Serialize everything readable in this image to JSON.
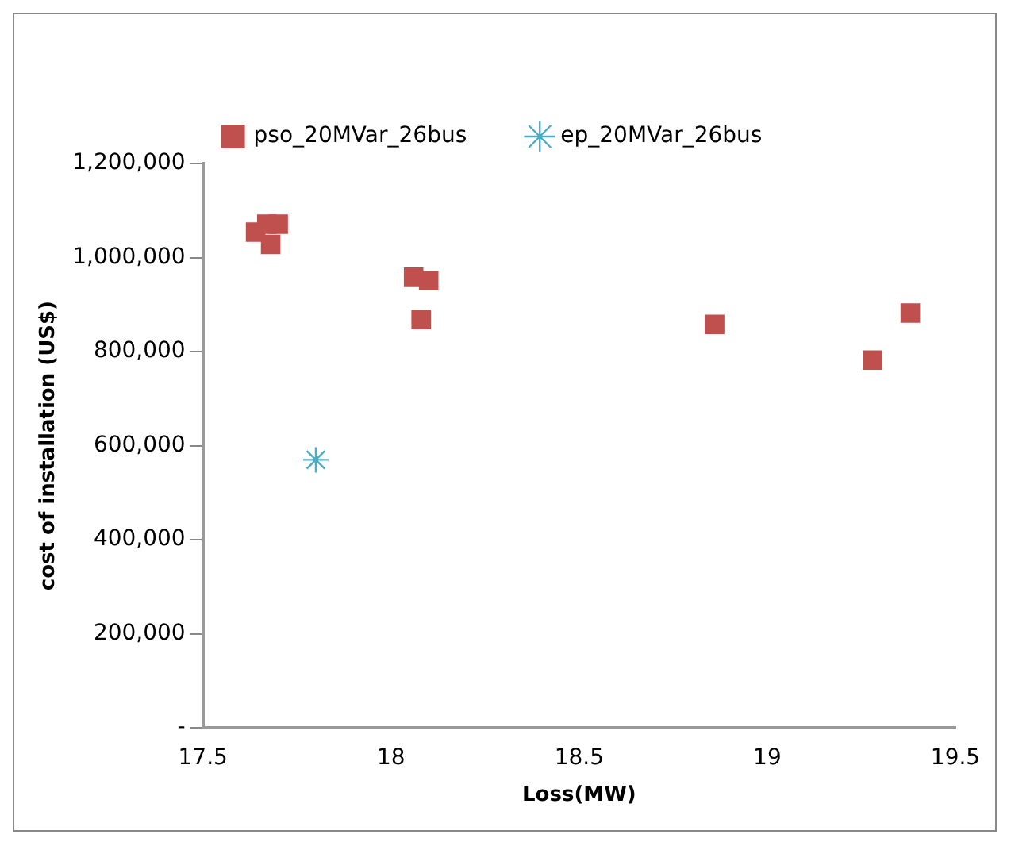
{
  "chart_data": {
    "type": "scatter",
    "xlabel": "Loss(MW)",
    "ylabel": "cost of installation (US$)",
    "xlim": [
      17.5,
      19.5
    ],
    "xticks": [
      17.5,
      18,
      18.5,
      19,
      19.5
    ],
    "ylim": [
      0,
      1200000
    ],
    "yticks": [
      {
        "value": 0,
        "label": "-"
      },
      {
        "value": 200000,
        "label": "200,000"
      },
      {
        "value": 400000,
        "label": "400,000"
      },
      {
        "value": 600000,
        "label": "600,000"
      },
      {
        "value": 800000,
        "label": "800,000"
      },
      {
        "value": 1000000,
        "label": "1,000,000"
      },
      {
        "value": 1200000,
        "label": "1,200,000"
      }
    ],
    "grid": false,
    "legend": "top",
    "series": [
      {
        "name": "pso_20MVar_26bus",
        "color": "#c0504d",
        "marker": "square",
        "x": [
          17.64,
          17.67,
          17.7,
          17.68,
          18.06,
          18.1,
          18.08,
          18.86,
          19.28,
          19.38
        ],
        "values": [
          1054000,
          1071000,
          1071000,
          1028000,
          958000,
          951000,
          868000,
          858000,
          782000,
          882000
        ]
      },
      {
        "name": "ep_20MVar_26bus",
        "color": "#4bacc6",
        "marker": "cross",
        "x": [
          17.8
        ],
        "values": [
          570000
        ]
      }
    ]
  }
}
